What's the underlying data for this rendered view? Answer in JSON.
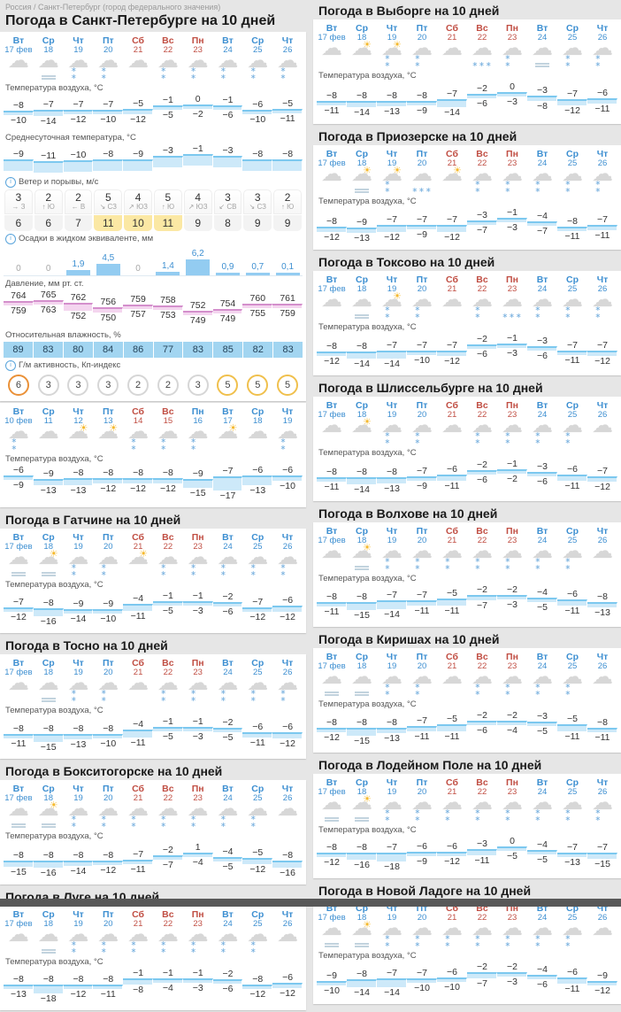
{
  "page": {
    "breadcrumb": "Россия / Санкт-Петербург (город федерального значения)"
  },
  "labels": {
    "temp": "Температура воздуха, °C",
    "avg": "Среднесуточная температура, °C",
    "wind": "Ветер и порывы, м/с",
    "precip": "Осадки в жидком эквиваленте, мм",
    "pressure": "Давление, мм рт. ст.",
    "humidity": "Относительная влажность, %",
    "kp": "Г/м активность, Кп-индекс",
    "info_icon": "i"
  },
  "colors": {
    "weekday": "#3d8fd1",
    "weekend": "#c14f44",
    "temp_band": "#cde9f9",
    "temp_edge": "#7cc8ef",
    "pressure_band": "#f4d5ef",
    "pressure_edge": "#d48fcc",
    "humidity_bg": "#a2d5f1",
    "precip_bar": "#93ccf1",
    "gust_highlight": "#fbe8a4",
    "kp5": "#f0c04d",
    "kp6": "#ea9138"
  },
  "days_current": [
    {
      "name": "Вт",
      "date": "17 фев",
      "weekend": false
    },
    {
      "name": "Ср",
      "date": "18",
      "weekend": false
    },
    {
      "name": "Чт",
      "date": "19",
      "weekend": false
    },
    {
      "name": "Пт",
      "date": "20",
      "weekend": false
    },
    {
      "name": "Сб",
      "date": "21",
      "weekend": true
    },
    {
      "name": "Вс",
      "date": "22",
      "weekend": true
    },
    {
      "name": "Пн",
      "date": "23",
      "weekend": true
    },
    {
      "name": "Вт",
      "date": "24",
      "weekend": false
    },
    {
      "name": "Ср",
      "date": "25",
      "weekend": false
    },
    {
      "name": "Чт",
      "date": "26",
      "weekend": false
    }
  ],
  "days_past": [
    {
      "name": "Вт",
      "date": "10 фев",
      "weekend": false
    },
    {
      "name": "Ср",
      "date": "11",
      "weekend": false
    },
    {
      "name": "Чт",
      "date": "12",
      "weekend": false
    },
    {
      "name": "Пт",
      "date": "13",
      "weekend": false
    },
    {
      "name": "Сб",
      "date": "14",
      "weekend": true
    },
    {
      "name": "Вс",
      "date": "15",
      "weekend": true
    },
    {
      "name": "Пн",
      "date": "16",
      "weekend": false
    },
    {
      "name": "Вт",
      "date": "17",
      "weekend": false
    },
    {
      "name": "Ср",
      "date": "18",
      "weekend": false
    },
    {
      "name": "Чт",
      "date": "19",
      "weekend": false
    }
  ],
  "spb": {
    "title": "Погода в Санкт-Петербурге на 10 дней",
    "icons": [
      "cloud",
      "cloud-fog",
      "cloud-snow",
      "cloud-snow",
      "cloud",
      "cloud-snow",
      "cloud-snow",
      "cloud-snow",
      "cloud-snow",
      "cloud-snow"
    ],
    "temp_max": [
      -8,
      -7,
      -7,
      -7,
      -5,
      -1,
      0,
      -1,
      -6,
      -5
    ],
    "temp_min": [
      -10,
      -14,
      -12,
      -10,
      -12,
      -5,
      -2,
      -6,
      -10,
      -11
    ],
    "avg_temp": [
      -9,
      -11,
      -10,
      -8,
      -9,
      -3,
      -1,
      -3,
      -8,
      -8
    ],
    "wind_speed": [
      3,
      2,
      2,
      5,
      4,
      5,
      4,
      3,
      3,
      2
    ],
    "wind_arrow": [
      "→",
      "↑",
      "←",
      "↘",
      "↗",
      "↑",
      "↗",
      "↙",
      "↘",
      "↑"
    ],
    "wind_dir": [
      "З",
      "Ю",
      "В",
      "СЗ",
      "ЮЗ",
      "Ю",
      "ЮЗ",
      "СВ",
      "СЗ",
      "Ю"
    ],
    "wind_gust": [
      6,
      6,
      7,
      11,
      10,
      11,
      9,
      8,
      9,
      9
    ],
    "precip": [
      0,
      0,
      1.9,
      4.5,
      0,
      1.4,
      6.2,
      0.9,
      0.7,
      0.1
    ],
    "pressure_max": [
      764,
      765,
      762,
      756,
      759,
      758,
      752,
      754,
      760,
      761
    ],
    "pressure_min": [
      759,
      763,
      752,
      750,
      757,
      753,
      749,
      749,
      755,
      759
    ],
    "humidity": [
      89,
      83,
      80,
      84,
      86,
      77,
      83,
      85,
      82,
      83
    ],
    "kp": [
      6,
      3,
      3,
      3,
      2,
      2,
      3,
      5,
      5,
      5
    ]
  },
  "spb_past": {
    "icons": [
      "cloud-snow",
      "cloud",
      "sun-cloud",
      "sun-cloud",
      "cloud-snow",
      "cloud-snow",
      "cloud-snow",
      "sun-cloud",
      "cloud",
      "cloud-snow"
    ],
    "temp_max": [
      -6,
      -9,
      -8,
      -8,
      -8,
      -8,
      -9,
      -7,
      -6,
      -6
    ],
    "temp_min": [
      -9,
      -13,
      -13,
      -12,
      -12,
      -12,
      -15,
      -17,
      -13,
      -10
    ]
  },
  "left_cities": [
    {
      "key": "gatchina",
      "title": "Погода в Гатчине на 10 дней",
      "icons": [
        "fog",
        "sun-fog",
        "cloud-snow",
        "cloud-snow",
        "sun-cloud",
        "cloud-snow",
        "cloud-snow",
        "cloud-snow",
        "cloud-snow",
        "cloud-snow"
      ],
      "temp_max": [
        -7,
        -8,
        -9,
        -9,
        -4,
        -1,
        -1,
        -2,
        -7,
        -6
      ],
      "temp_min": [
        -12,
        -16,
        -14,
        -10,
        -11,
        -5,
        -3,
        -6,
        -12,
        -12
      ]
    },
    {
      "key": "tosno",
      "title": "Погода в Тосно на 10 дней",
      "icons": [
        "cloud",
        "fog",
        "cloud-snow",
        "cloud-snow",
        "cloud",
        "cloud-snow",
        "cloud-snow",
        "cloud-snow",
        "cloud-snow",
        "cloud-snow"
      ],
      "temp_max": [
        -8,
        -8,
        -8,
        -8,
        -4,
        -1,
        -1,
        -2,
        -6,
        -6
      ],
      "temp_min": [
        -11,
        -15,
        -13,
        -10,
        -11,
        -5,
        -3,
        -5,
        -11,
        -12
      ]
    },
    {
      "key": "boksitogorsk",
      "title": "Погода в Бокситогорске на 10 дней",
      "icons": [
        "fog",
        "sun-fog",
        "cloud-snow",
        "cloud-snow",
        "cloud-snow",
        "cloud-snow",
        "cloud-snow",
        "cloud-snow",
        "cloud-snow",
        "cloud"
      ],
      "temp_max": [
        -8,
        -8,
        -8,
        -8,
        -7,
        -2,
        1,
        -4,
        -5,
        -8
      ],
      "temp_min": [
        -15,
        -16,
        -14,
        -12,
        -11,
        -7,
        -4,
        -5,
        -12,
        -16
      ]
    },
    {
      "key": "luga",
      "title": "Погода в Луге на 10 дней",
      "icons": [
        "cloud",
        "fog",
        "cloud-snow",
        "cloud-snow",
        "cloud-snow",
        "cloud-snow",
        "cloud-snow",
        "cloud-snow",
        "cloud-snow",
        "cloud"
      ],
      "temp_max": [
        -8,
        -8,
        -8,
        -8,
        -1,
        -1,
        -1,
        -2,
        -8,
        -6
      ],
      "temp_min": [
        -13,
        -18,
        -12,
        -11,
        -8,
        -4,
        -3,
        -6,
        -12,
        -12
      ]
    }
  ],
  "right_cities": [
    {
      "key": "vyborg",
      "title": "Погода в Выборге на 10 дней",
      "icons": [
        "cloud",
        "sun-cloud",
        "sun-cloud-snow",
        "cloud-snow",
        "cloud",
        "cloud-snow-heavy",
        "cloud-snow",
        "cloud-fog",
        "cloud-snow",
        "cloud-snow"
      ],
      "temp_max": [
        -8,
        -8,
        -8,
        -8,
        -7,
        -2,
        0,
        -3,
        -7,
        -6
      ],
      "temp_min": [
        -11,
        -14,
        -13,
        -9,
        -14,
        -6,
        -3,
        -8,
        -12,
        -11
      ]
    },
    {
      "key": "priozersk",
      "title": "Погода в Приозерске на 10 дней",
      "icons": [
        "cloud",
        "sun-fog",
        "sun-cloud-snow",
        "cloud-snow-heavy",
        "sun-cloud",
        "cloud-snow",
        "cloud-snow",
        "cloud-snow",
        "cloud-snow",
        "cloud-snow"
      ],
      "temp_max": [
        -8,
        -9,
        -7,
        -7,
        -7,
        -3,
        -1,
        -4,
        -8,
        -7
      ],
      "temp_min": [
        -12,
        -13,
        -12,
        -9,
        -12,
        -7,
        -3,
        -7,
        -11,
        -11
      ]
    },
    {
      "key": "toksovo",
      "title": "Погода в Токсово на 10 дней",
      "icons": [
        "cloud",
        "fog",
        "sun-cloud-snow",
        "cloud-snow",
        "cloud",
        "cloud-snow",
        "cloud-snow-heavy",
        "cloud-snow",
        "cloud-snow",
        "cloud-snow"
      ],
      "temp_max": [
        -8,
        -8,
        -7,
        -7,
        -7,
        -2,
        -1,
        -3,
        -7,
        -7
      ],
      "temp_min": [
        -12,
        -14,
        -14,
        -10,
        -12,
        -6,
        -3,
        -6,
        -11,
        -12
      ]
    },
    {
      "key": "shlisselburg",
      "title": "Погода в Шлиссельбурге на 10 дней",
      "icons": [
        "cloud",
        "sun-cloud",
        "cloud-snow",
        "cloud-snow",
        "cloud",
        "cloud-snow",
        "cloud-snow",
        "cloud-snow",
        "cloud-snow",
        "cloud"
      ],
      "temp_max": [
        -8,
        -8,
        -8,
        -7,
        -6,
        -2,
        -1,
        -3,
        -6,
        -7
      ],
      "temp_min": [
        -11,
        -14,
        -13,
        -9,
        -11,
        -6,
        -2,
        -6,
        -11,
        -12
      ]
    },
    {
      "key": "volkhov",
      "title": "Погода в Волхове на 10 дней",
      "icons": [
        "cloud",
        "sun-fog",
        "cloud-snow",
        "cloud-snow",
        "cloud-snow",
        "cloud-snow",
        "cloud-snow",
        "cloud-snow",
        "cloud-snow",
        "cloud"
      ],
      "temp_max": [
        -8,
        -8,
        -7,
        -7,
        -5,
        -2,
        -2,
        -4,
        -6,
        -8
      ],
      "temp_min": [
        -11,
        -15,
        -14,
        -11,
        -11,
        -7,
        -3,
        -5,
        -11,
        -13
      ]
    },
    {
      "key": "kirishi",
      "title": "Погода в Киришах на 10 дней",
      "icons": [
        "fog",
        "fog",
        "cloud-snow",
        "cloud-snow",
        "cloud",
        "cloud-snow",
        "cloud-snow",
        "cloud-snow",
        "cloud-snow",
        "cloud"
      ],
      "temp_max": [
        -8,
        -8,
        -8,
        -7,
        -5,
        -2,
        -2,
        -3,
        -5,
        -8
      ],
      "temp_min": [
        -12,
        -15,
        -13,
        -11,
        -11,
        -6,
        -4,
        -5,
        -11,
        -11
      ]
    },
    {
      "key": "lodeynoye-pole",
      "title": "Погода в Лодейном Поле на 10 дней",
      "icons": [
        "fog",
        "sun-fog",
        "cloud-snow",
        "cloud-snow",
        "cloud-snow",
        "cloud-snow",
        "cloud-snow",
        "cloud-snow",
        "cloud-snow",
        "cloud-snow"
      ],
      "temp_max": [
        -8,
        -8,
        -7,
        -6,
        -6,
        -3,
        0,
        -4,
        -7,
        -7
      ],
      "temp_min": [
        -12,
        -16,
        -18,
        -9,
        -12,
        -11,
        -5,
        -5,
        -13,
        -15
      ]
    },
    {
      "key": "novaya-ladoga",
      "title": "Погода в Новой Ладоге на 10 дней",
      "icons": [
        "fog",
        "sun-fog",
        "cloud-snow",
        "cloud-snow",
        "cloud-snow",
        "cloud-snow",
        "cloud-snow",
        "cloud-snow",
        "cloud-snow",
        "cloud"
      ],
      "temp_max": [
        -9,
        -8,
        -7,
        -7,
        -6,
        -2,
        -2,
        -4,
        -6,
        -9
      ],
      "temp_min": [
        -10,
        -14,
        -14,
        -10,
        -10,
        -7,
        -3,
        -6,
        -11,
        -12
      ]
    }
  ]
}
